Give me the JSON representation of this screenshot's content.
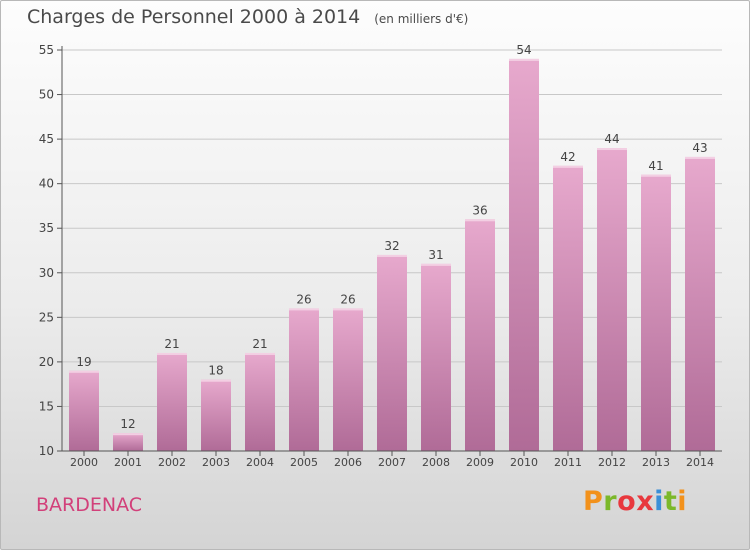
{
  "header": {
    "title": "Charges de Personnel 2000 à 2014",
    "unit": "(en milliers d'€)"
  },
  "footer": {
    "place": "BARDENAC",
    "logo": [
      "P",
      "r",
      "o",
      "x",
      "i",
      "t",
      "i"
    ],
    "logo_colors": [
      "#f2911b",
      "#7bb82a",
      "#e8383d",
      "#e8383d",
      "#3a8fd8",
      "#7bb82a",
      "#f2911b"
    ]
  },
  "colors": {
    "bar_top": "#e7a9cd",
    "bar_bottom": "#b06b97",
    "axis": "#555555",
    "grid": "#c8c8c8",
    "text": "#444444"
  },
  "chart_data": {
    "type": "bar",
    "categories": [
      "2000",
      "2001",
      "2002",
      "2003",
      "2004",
      "2005",
      "2006",
      "2007",
      "2008",
      "2009",
      "2010",
      "2011",
      "2012",
      "2013",
      "2014"
    ],
    "values": [
      19,
      12,
      21,
      18,
      21,
      26,
      26,
      32,
      31,
      36,
      54,
      42,
      44,
      41,
      43
    ],
    "ylim": [
      10,
      55
    ],
    "yticks": [
      10,
      15,
      20,
      25,
      30,
      35,
      40,
      45,
      50,
      55
    ],
    "grid": true,
    "data_labels": true
  }
}
